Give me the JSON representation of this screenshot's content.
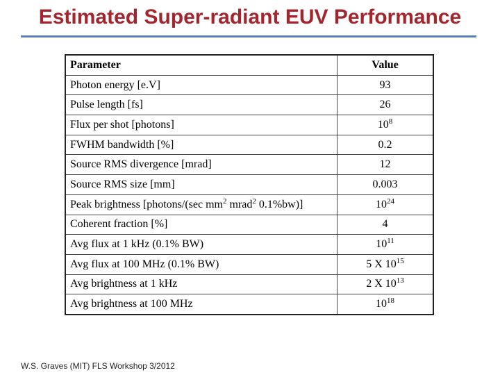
{
  "header": {
    "title": "Estimated Super-radiant EUV Performance"
  },
  "table": {
    "columns": [
      "Parameter",
      "Value"
    ],
    "rows": [
      [
        "Photon energy [e.V]",
        "93"
      ],
      [
        "Pulse length [fs]",
        "26"
      ],
      [
        "Flux per shot [photons]",
        [
          "10",
          "8"
        ]
      ],
      [
        "FWHM bandwidth [%]",
        "0.2"
      ],
      [
        "Source RMS divergence [mrad]",
        "12"
      ],
      [
        "Source RMS size [mm]",
        "0.003"
      ],
      [
        [
          "Peak brightness [photons/(sec mm",
          "2",
          " mrad",
          "2",
          " 0.1%bw)]"
        ],
        [
          "10",
          "24"
        ]
      ],
      [
        "Coherent fraction [%]",
        "4"
      ],
      [
        "Avg flux at 1 kHz (0.1% BW)",
        [
          "10",
          "11"
        ]
      ],
      [
        "Avg flux at 100 MHz (0.1% BW)",
        [
          "5 X 10",
          "15"
        ]
      ],
      [
        "Avg brightness at 1 kHz",
        [
          "2 X 10",
          "13"
        ]
      ],
      [
        "Avg brightness at 100 MHz",
        [
          "10",
          "18"
        ]
      ]
    ]
  },
  "footer": {
    "text": "W.S. Graves (MIT) FLS Workshop 3/2012"
  }
}
